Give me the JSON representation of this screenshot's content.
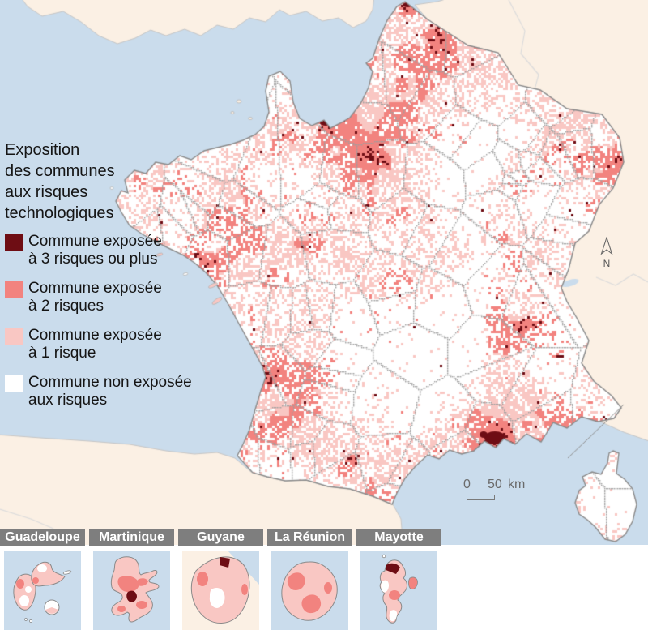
{
  "colors": {
    "sea": "#cadcec",
    "neighbor_land": "#fbf0e4",
    "neighbor_border": "#c6c6c6",
    "risk3": "#6e0d14",
    "risk2": "#f2837f",
    "risk1": "#f9c7c3",
    "risk0": "#ffffff",
    "coast": "#8a8a8a",
    "dept_border": "#9f9f9f",
    "inset_header_bg": "#7e7e7e",
    "inset_header_text": "#ffffff",
    "scale_text": "#6b6b6b"
  },
  "legend": {
    "title_lines": [
      "Exposition",
      "des communes",
      "aux risques",
      "technologiques"
    ],
    "items": [
      {
        "risk_key": "risk3",
        "lines": [
          "Commune exposée",
          "à 3 risques ou plus"
        ]
      },
      {
        "risk_key": "risk2",
        "lines": [
          "Commune exposée",
          "à 2 risques"
        ]
      },
      {
        "risk_key": "risk1",
        "lines": [
          "Commune exposée",
          "à 1 risque"
        ]
      },
      {
        "risk_key": "risk0",
        "lines": [
          "Commune non exposée",
          "aux risques"
        ]
      }
    ]
  },
  "scale_bar": {
    "left_label": "0",
    "right_label": "50",
    "unit": "km"
  },
  "north_arrow_label": "N",
  "insets": [
    {
      "name": "Guadeloupe"
    },
    {
      "name": "Martinique"
    },
    {
      "name": "Guyane"
    },
    {
      "name": "La Réunion"
    },
    {
      "name": "Mayotte"
    }
  ]
}
